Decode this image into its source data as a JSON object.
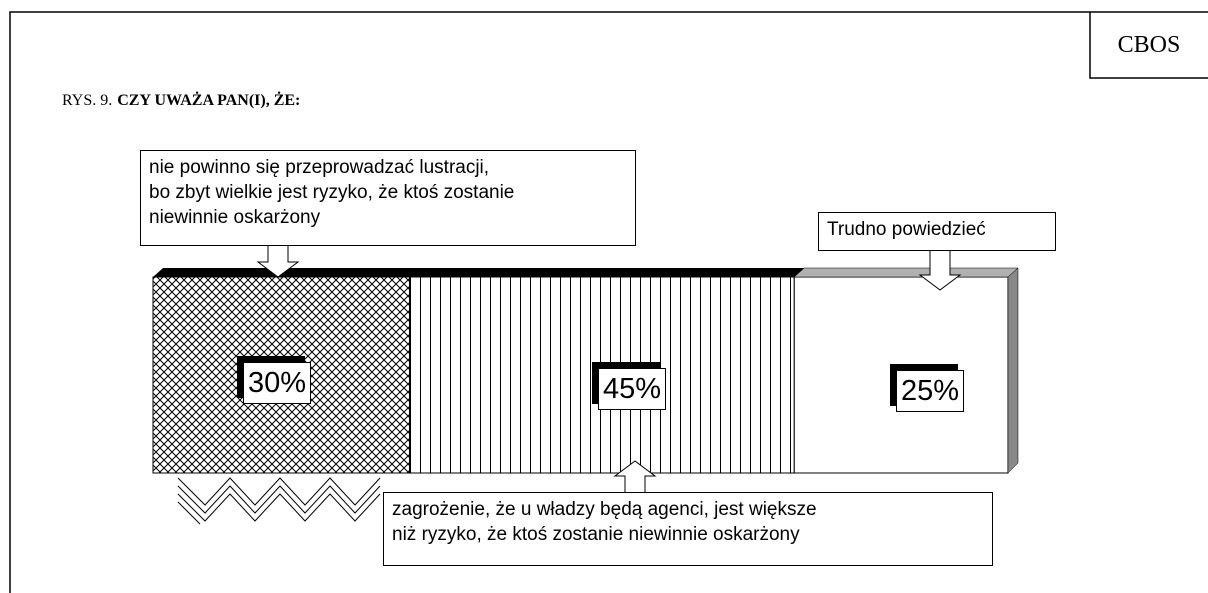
{
  "chart_data": {
    "type": "stacked_bar",
    "source": "CBOS",
    "figure_label": "RYS. 9.",
    "title": "CZY UWAŻA PAN(I), ŻE:",
    "series": [
      {
        "name": "nie powinno się przeprowadzać lustracji,\nbo zbyt wielkie jest ryzyko, że ktoś zostanie\nniewinnie oskarżony",
        "pattern": "crosshatch",
        "color": "#000000",
        "values": [
          30
        ],
        "value_labels": [
          "30%"
        ]
      },
      {
        "name": "zagrożenie, że u władzy będą agenci, jest większe\nniż ryzyko, że ktoś zostanie niewinnie oskarżony",
        "pattern": "vertical",
        "color": "#000000",
        "values": [
          45
        ],
        "value_labels": [
          "45%"
        ]
      },
      {
        "name": "Trudno powiedzieć",
        "pattern": "none",
        "color": "#ffffff",
        "values": [
          25
        ],
        "value_labels": [
          "25%"
        ]
      }
    ]
  }
}
